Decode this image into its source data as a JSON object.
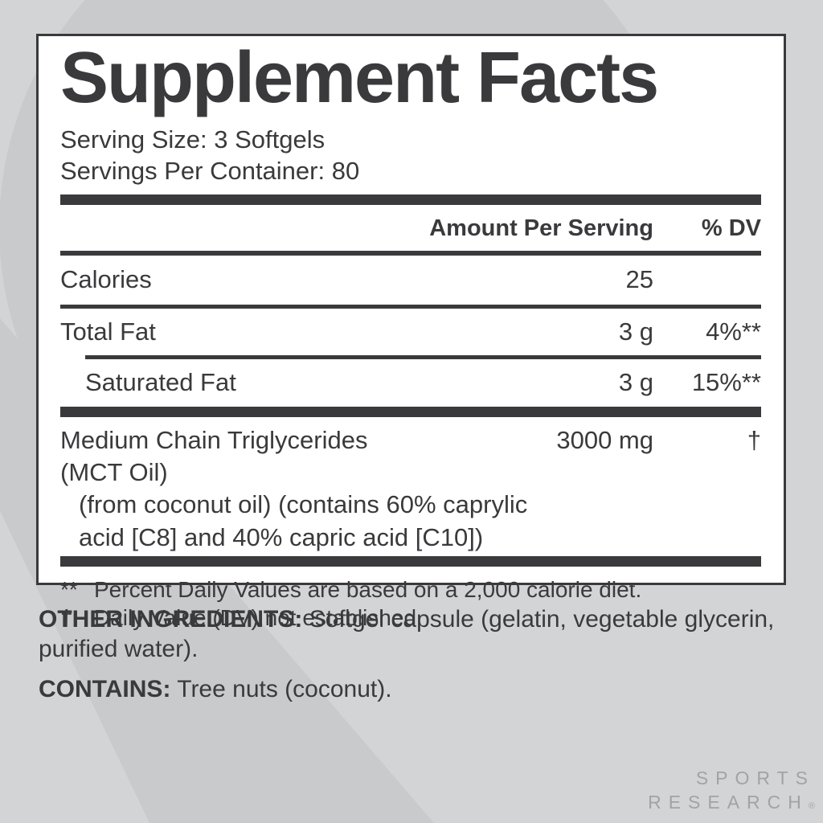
{
  "label": {
    "title": "Supplement Facts",
    "serving_size": "Serving Size: 3 Softgels",
    "servings_per_container": "Servings Per Container: 80",
    "header": {
      "amount": "Amount Per Serving",
      "dv": "% DV"
    },
    "rows": [
      {
        "name": "Calories",
        "amount": "25",
        "dv": ""
      },
      {
        "name": "Total Fat",
        "amount": "3 g",
        "dv": "4%**"
      },
      {
        "name": "Saturated Fat",
        "amount": "3 g",
        "dv": "15%**",
        "indent": true
      },
      {
        "name": "Medium Chain Triglycerides (MCT Oil)",
        "amount": "3000 mg",
        "dv": "†",
        "wrap": [
          "(from coconut oil) (contains 60% caprylic",
          "acid [C8] and 40% capric acid [C10])"
        ]
      }
    ],
    "footnotes": [
      {
        "marker": "**",
        "text": "Percent Daily Values are based on a 2,000 calorie diet."
      },
      {
        "marker": "†",
        "text": "Daily Value (DV) not established."
      }
    ]
  },
  "other_ingredients": {
    "label": "OTHER INGREDIENTS:",
    "text": " Softgel capsule (gelatin, vegetable glycerin, purified water)."
  },
  "contains": {
    "label": "CONTAINS:",
    "text": " Tree nuts (coconut)."
  },
  "brand": {
    "line1": "SPORTS",
    "line2": "RESEARCH",
    "reg": "®"
  },
  "colors": {
    "ink": "#3a3a3c",
    "background": "#d3d4d6",
    "watermark": "#c9cacc",
    "panel": "#ffffff",
    "brand_gray": "#a2a3a6"
  }
}
